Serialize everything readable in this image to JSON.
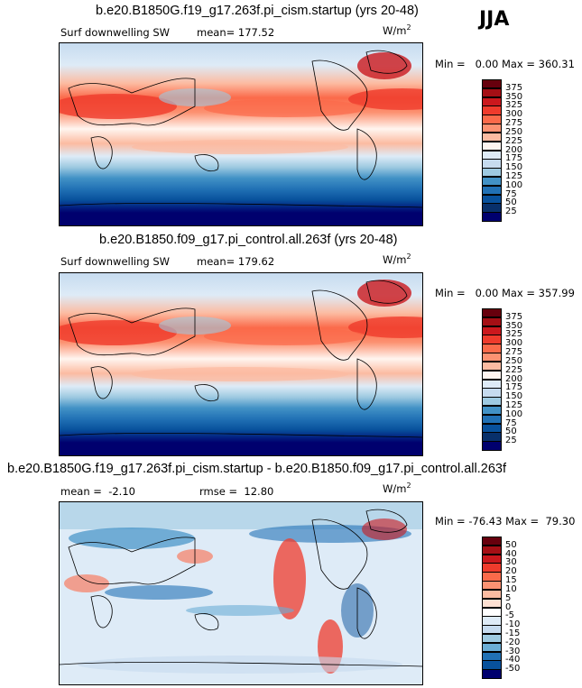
{
  "season": "JJA",
  "panels": [
    {
      "title": "b.e20.B1850G.f19_g17.263f.pi_cism.startup (yrs 20-48)",
      "variable": "Surf downwelling SW",
      "mean_text": "mean=",
      "mean": "177.52",
      "units_base": "W/m",
      "units_exp": "2",
      "min_label": "Min =",
      "min": "0.00",
      "max_label": "Max =",
      "max": "360.31",
      "levels": [
        "375",
        "350",
        "325",
        "300",
        "275",
        "250",
        "225",
        "200",
        "175",
        "150",
        "125",
        "100",
        "75",
        "50",
        "25"
      ]
    },
    {
      "title": "b.e20.B1850.f09_g17.pi_control.all.263f (yrs 20-48)",
      "variable": "Surf downwelling SW",
      "mean_text": "mean=",
      "mean": "179.62",
      "units_base": "W/m",
      "units_exp": "2",
      "min_label": "Min =",
      "min": "0.00",
      "max_label": "Max =",
      "max": "357.99",
      "levels": [
        "375",
        "350",
        "325",
        "300",
        "275",
        "250",
        "225",
        "200",
        "175",
        "150",
        "125",
        "100",
        "75",
        "50",
        "25"
      ]
    },
    {
      "title": "b.e20.B1850G.f19_g17.263f.pi_cism.startup - b.e20.B1850.f09_g17.pi_control.all.263f",
      "mean_text": "mean =",
      "mean": "-2.10",
      "rmse_text": "rmse =",
      "rmse": "12.80",
      "units_base": "W/m",
      "units_exp": "2",
      "min_label": "Min =",
      "min": "-76.43",
      "max_label": "Max =",
      "max": "79.30",
      "levels": [
        "50",
        "40",
        "30",
        "20",
        "15",
        "10",
        "5",
        "0",
        "-5",
        "-10",
        "-15",
        "-20",
        "-30",
        "-40",
        "-50"
      ]
    }
  ],
  "colors": {
    "abs_scale": [
      "#67000d",
      "#a50f15",
      "#cb181d",
      "#ef3b2c",
      "#fb6a4a",
      "#fc9272",
      "#fcbba1",
      "#fff5f0",
      "#deebf7",
      "#c6dbef",
      "#9ecae1",
      "#4292c6",
      "#2171b5",
      "#08519c",
      "#08306b",
      "#00006e"
    ],
    "diff_scale": [
      "#67000d",
      "#a50f15",
      "#cb181d",
      "#ef3b2c",
      "#fb6a4a",
      "#fc9272",
      "#fcbba1",
      "#fee0d2",
      "#ffffff",
      "#deebf7",
      "#c6dbef",
      "#9ecae1",
      "#6baed6",
      "#2171b5",
      "#08519c",
      "#00006e"
    ]
  }
}
